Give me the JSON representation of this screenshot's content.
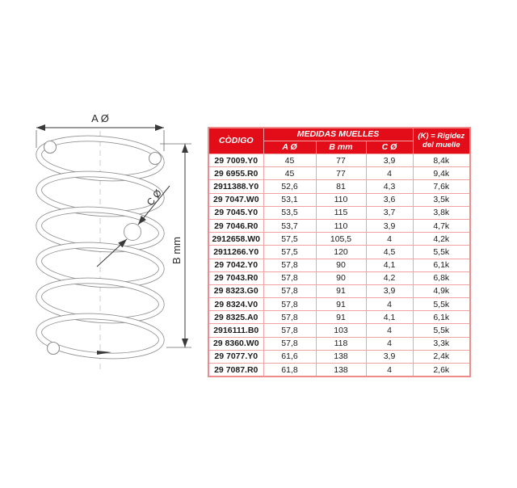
{
  "diagram": {
    "label_a": "A Ø",
    "label_b": "B mm",
    "label_c": "C Ø"
  },
  "table": {
    "header": {
      "codigo": "CÒDIGO",
      "group": "MEDIDAS MUELLES",
      "col_a": "A Ø",
      "col_b": "B mm",
      "col_c": "C Ø",
      "k_line1": "(K) = Rigidez",
      "k_line2": "del muelle"
    },
    "rows": [
      [
        "29 7009.Y0",
        "45",
        "77",
        "3,9",
        "8,4k"
      ],
      [
        "29 6955.R0",
        "45",
        "77",
        "4",
        "9,4k"
      ],
      [
        "2911388.Y0",
        "52,6",
        "81",
        "4,3",
        "7,6k"
      ],
      [
        "29 7047.W0",
        "53,1",
        "110",
        "3,6",
        "3,5k"
      ],
      [
        "29 7045.Y0",
        "53,5",
        "115",
        "3,7",
        "3,8k"
      ],
      [
        "29 7046.R0",
        "53,7",
        "110",
        "3,9",
        "4,7k"
      ],
      [
        "2912658.W0",
        "57,5",
        "105,5",
        "4",
        "4,2k"
      ],
      [
        "2911266.Y0",
        "57,5",
        "120",
        "4,5",
        "5,5k"
      ],
      [
        "29 7042.Y0",
        "57,8",
        "90",
        "4,1",
        "6,1k"
      ],
      [
        "29 7043.R0",
        "57,8",
        "90",
        "4,2",
        "6,8k"
      ],
      [
        "29 8323.G0",
        "57,8",
        "91",
        "3,9",
        "4,9k"
      ],
      [
        "29 8324.V0",
        "57,8",
        "91",
        "4",
        "5,5k"
      ],
      [
        "29 8325.A0",
        "57,8",
        "91",
        "4,1",
        "6,1k"
      ],
      [
        "2916111.B0",
        "57,8",
        "103",
        "4",
        "5,5k"
      ],
      [
        "29 8360.W0",
        "57,8",
        "118",
        "4",
        "3,3k"
      ],
      [
        "29 7077.Y0",
        "61,6",
        "138",
        "3,9",
        "2,4k"
      ],
      [
        "29 7087.R0",
        "61,8",
        "138",
        "4",
        "2,6k"
      ]
    ]
  },
  "colors": {
    "header_red": "#e20d18",
    "grid_pink": "#f1a3a3",
    "spring_gray": "#929292"
  }
}
